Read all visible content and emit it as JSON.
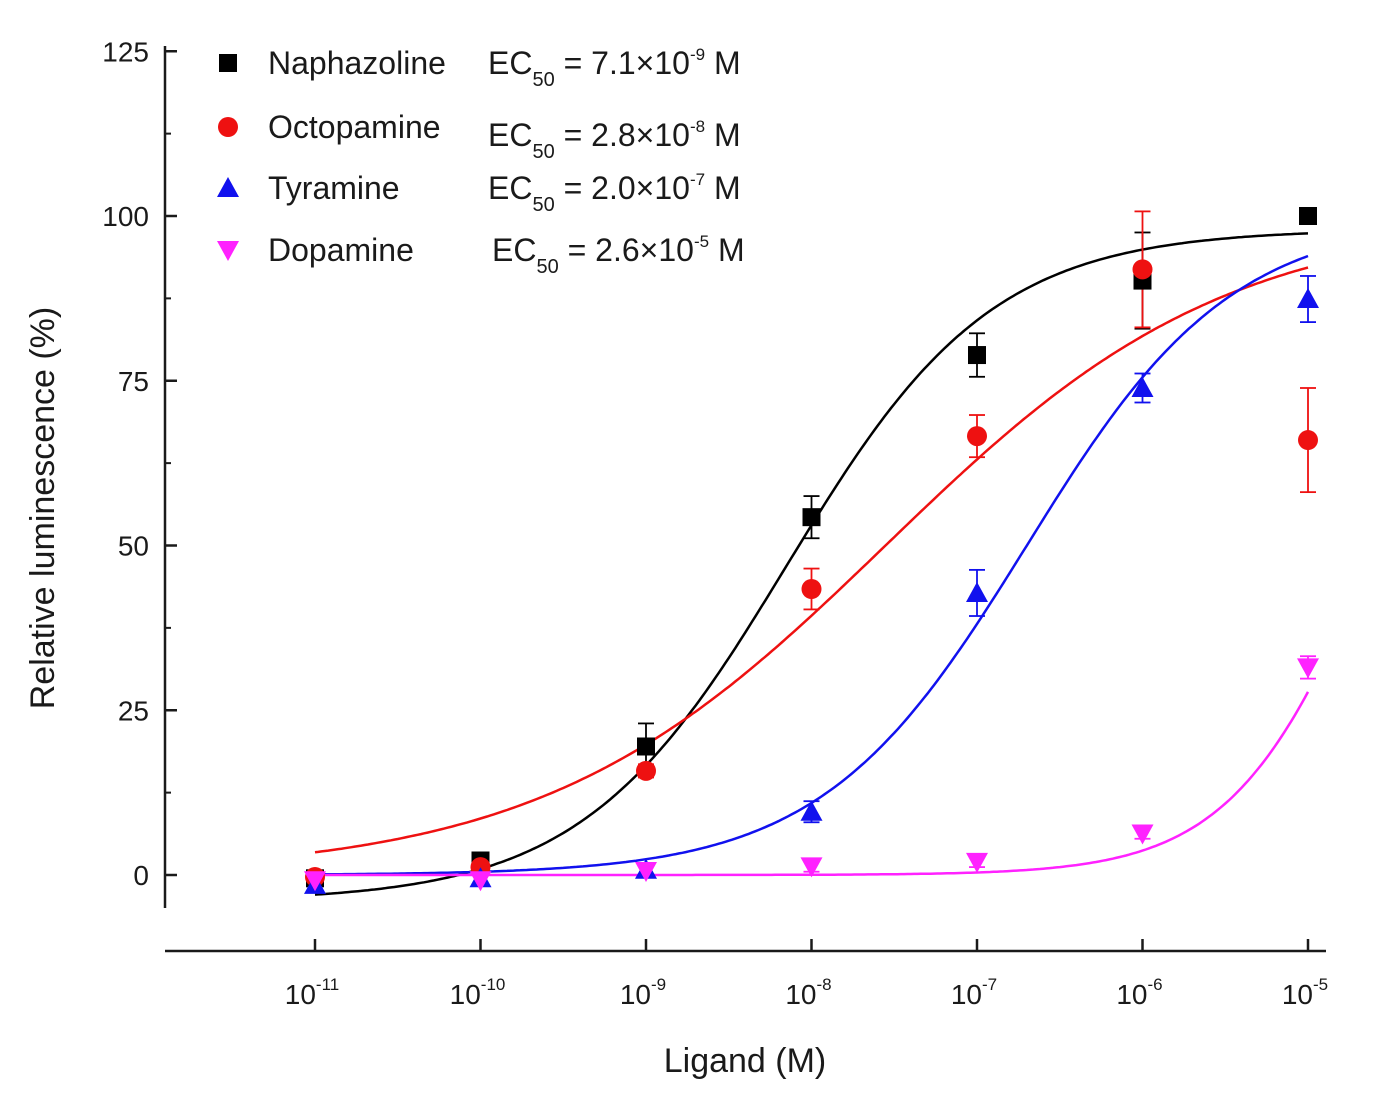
{
  "chart_data": {
    "type": "scatter",
    "xscale": "log",
    "xlabel": "Ligand (M)",
    "ylabel": "Relative luminescence (%)",
    "xlim": [
      1e-11,
      1e-05
    ],
    "ylim": [
      -5,
      125
    ],
    "x_ticks": [
      {
        "base": "10",
        "exp": "-11"
      },
      {
        "base": "10",
        "exp": "-10"
      },
      {
        "base": "10",
        "exp": "-9"
      },
      {
        "base": "10",
        "exp": "-8"
      },
      {
        "base": "10",
        "exp": "-7"
      },
      {
        "base": "10",
        "exp": "-6"
      },
      {
        "base": "10",
        "exp": "-5"
      }
    ],
    "y_ticks": [
      "0",
      "25",
      "50",
      "75",
      "100",
      "125"
    ],
    "legend_position": "top-left",
    "grid": false,
    "x": [
      1e-11,
      1e-10,
      1e-09,
      1e-08,
      1e-07,
      1e-06,
      1e-05
    ],
    "series": [
      {
        "name": "Naphazoline",
        "ec50_prefix": "EC",
        "ec50_sub": "50",
        "ec50_eq": " = 7.1×10",
        "ec50_exp": "-9",
        "ec50_unit": " M",
        "ec50_value": 7.1e-09,
        "marker": "square",
        "color": "#000000",
        "values": [
          -0.5,
          2.2,
          19.5,
          54.3,
          78.9,
          90.2,
          100.0
        ],
        "errors": [
          1.0,
          1.2,
          3.5,
          3.2,
          3.3,
          7.3,
          0.0
        ],
        "fit": {
          "bottom": -4,
          "top": 98,
          "hill": 0.7
        }
      },
      {
        "name": "Octopamine",
        "ec50_prefix": "EC",
        "ec50_sub": "50",
        "ec50_eq": " = 2.8×10",
        "ec50_exp": "-8",
        "ec50_unit": " M",
        "ec50_value": 2.8e-08,
        "marker": "circle",
        "color": "#ee1111",
        "values": [
          -0.3,
          1.2,
          15.8,
          43.4,
          66.6,
          91.9,
          66.0
        ],
        "errors": [
          1.0,
          1.0,
          1.0,
          3.1,
          3.2,
          8.8,
          7.9
        ],
        "fit": {
          "bottom": 0,
          "top": 100,
          "hill": 0.42
        }
      },
      {
        "name": "Tyramine",
        "ec50_prefix": "EC",
        "ec50_sub": "50",
        "ec50_eq": " = 2.0×10",
        "ec50_exp": "-7",
        "ec50_unit": " M",
        "ec50_value": 2e-07,
        "marker": "triangle-up",
        "color": "#1111ee",
        "values": [
          -1.5,
          -0.5,
          0.8,
          9.6,
          42.8,
          73.9,
          87.4
        ],
        "errors": [
          0.8,
          0.8,
          0.8,
          1.6,
          3.5,
          2.2,
          3.5
        ],
        "fit": {
          "bottom": 0,
          "top": 100,
          "hill": 0.7
        }
      },
      {
        "name": "Dopamine",
        "ec50_prefix": "EC",
        "ec50_sub": "50",
        "ec50_eq": " = 2.6×10",
        "ec50_exp": "-5",
        "ec50_unit": " M",
        "ec50_value": 2.6e-05,
        "marker": "triangle-down",
        "color": "#ff22ff",
        "values": [
          -0.8,
          -0.8,
          0.6,
          1.3,
          2.0,
          6.3,
          31.5
        ],
        "errors": [
          0.8,
          0.8,
          0.8,
          0.8,
          0.8,
          0.8,
          1.7
        ],
        "fit": {
          "bottom": 0,
          "top": 100,
          "hill": 1.0
        }
      }
    ]
  }
}
